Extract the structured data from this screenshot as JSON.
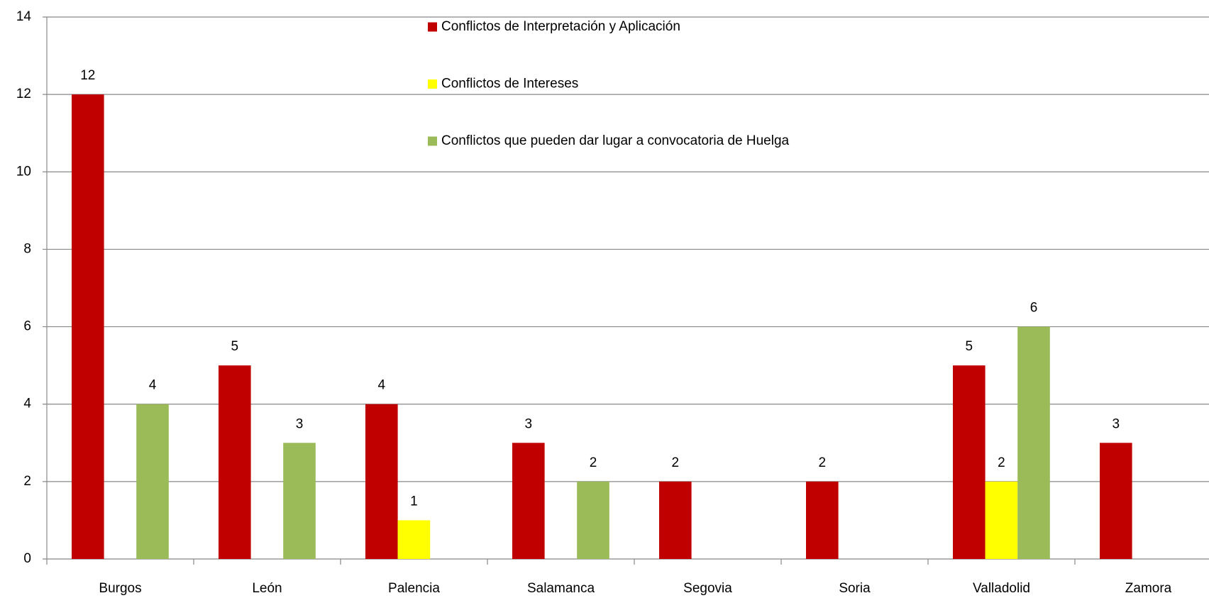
{
  "chart_data": {
    "type": "bar",
    "categories": [
      "Burgos",
      "León",
      "Palencia",
      "Salamanca",
      "Segovia",
      "Soria",
      "Valladolid",
      "Zamora"
    ],
    "series": [
      {
        "name": "Conflictos de Interpretación y Aplicación",
        "color": "#c00000",
        "values": [
          12,
          5,
          4,
          3,
          2,
          2,
          5,
          3
        ]
      },
      {
        "name": "Conflictos de Intereses",
        "color": "#ffff00",
        "values": [
          null,
          null,
          1,
          null,
          null,
          null,
          2,
          null
        ]
      },
      {
        "name": "Conflictos que pueden dar lugar a convocatoria de Huelga",
        "color": "#9bbb59",
        "values": [
          4,
          3,
          null,
          2,
          null,
          null,
          6,
          null
        ]
      }
    ],
    "ylim": [
      0,
      14
    ],
    "yticks": [
      0,
      2,
      4,
      6,
      8,
      10,
      12,
      14
    ],
    "grid": true,
    "data_labels": true
  }
}
